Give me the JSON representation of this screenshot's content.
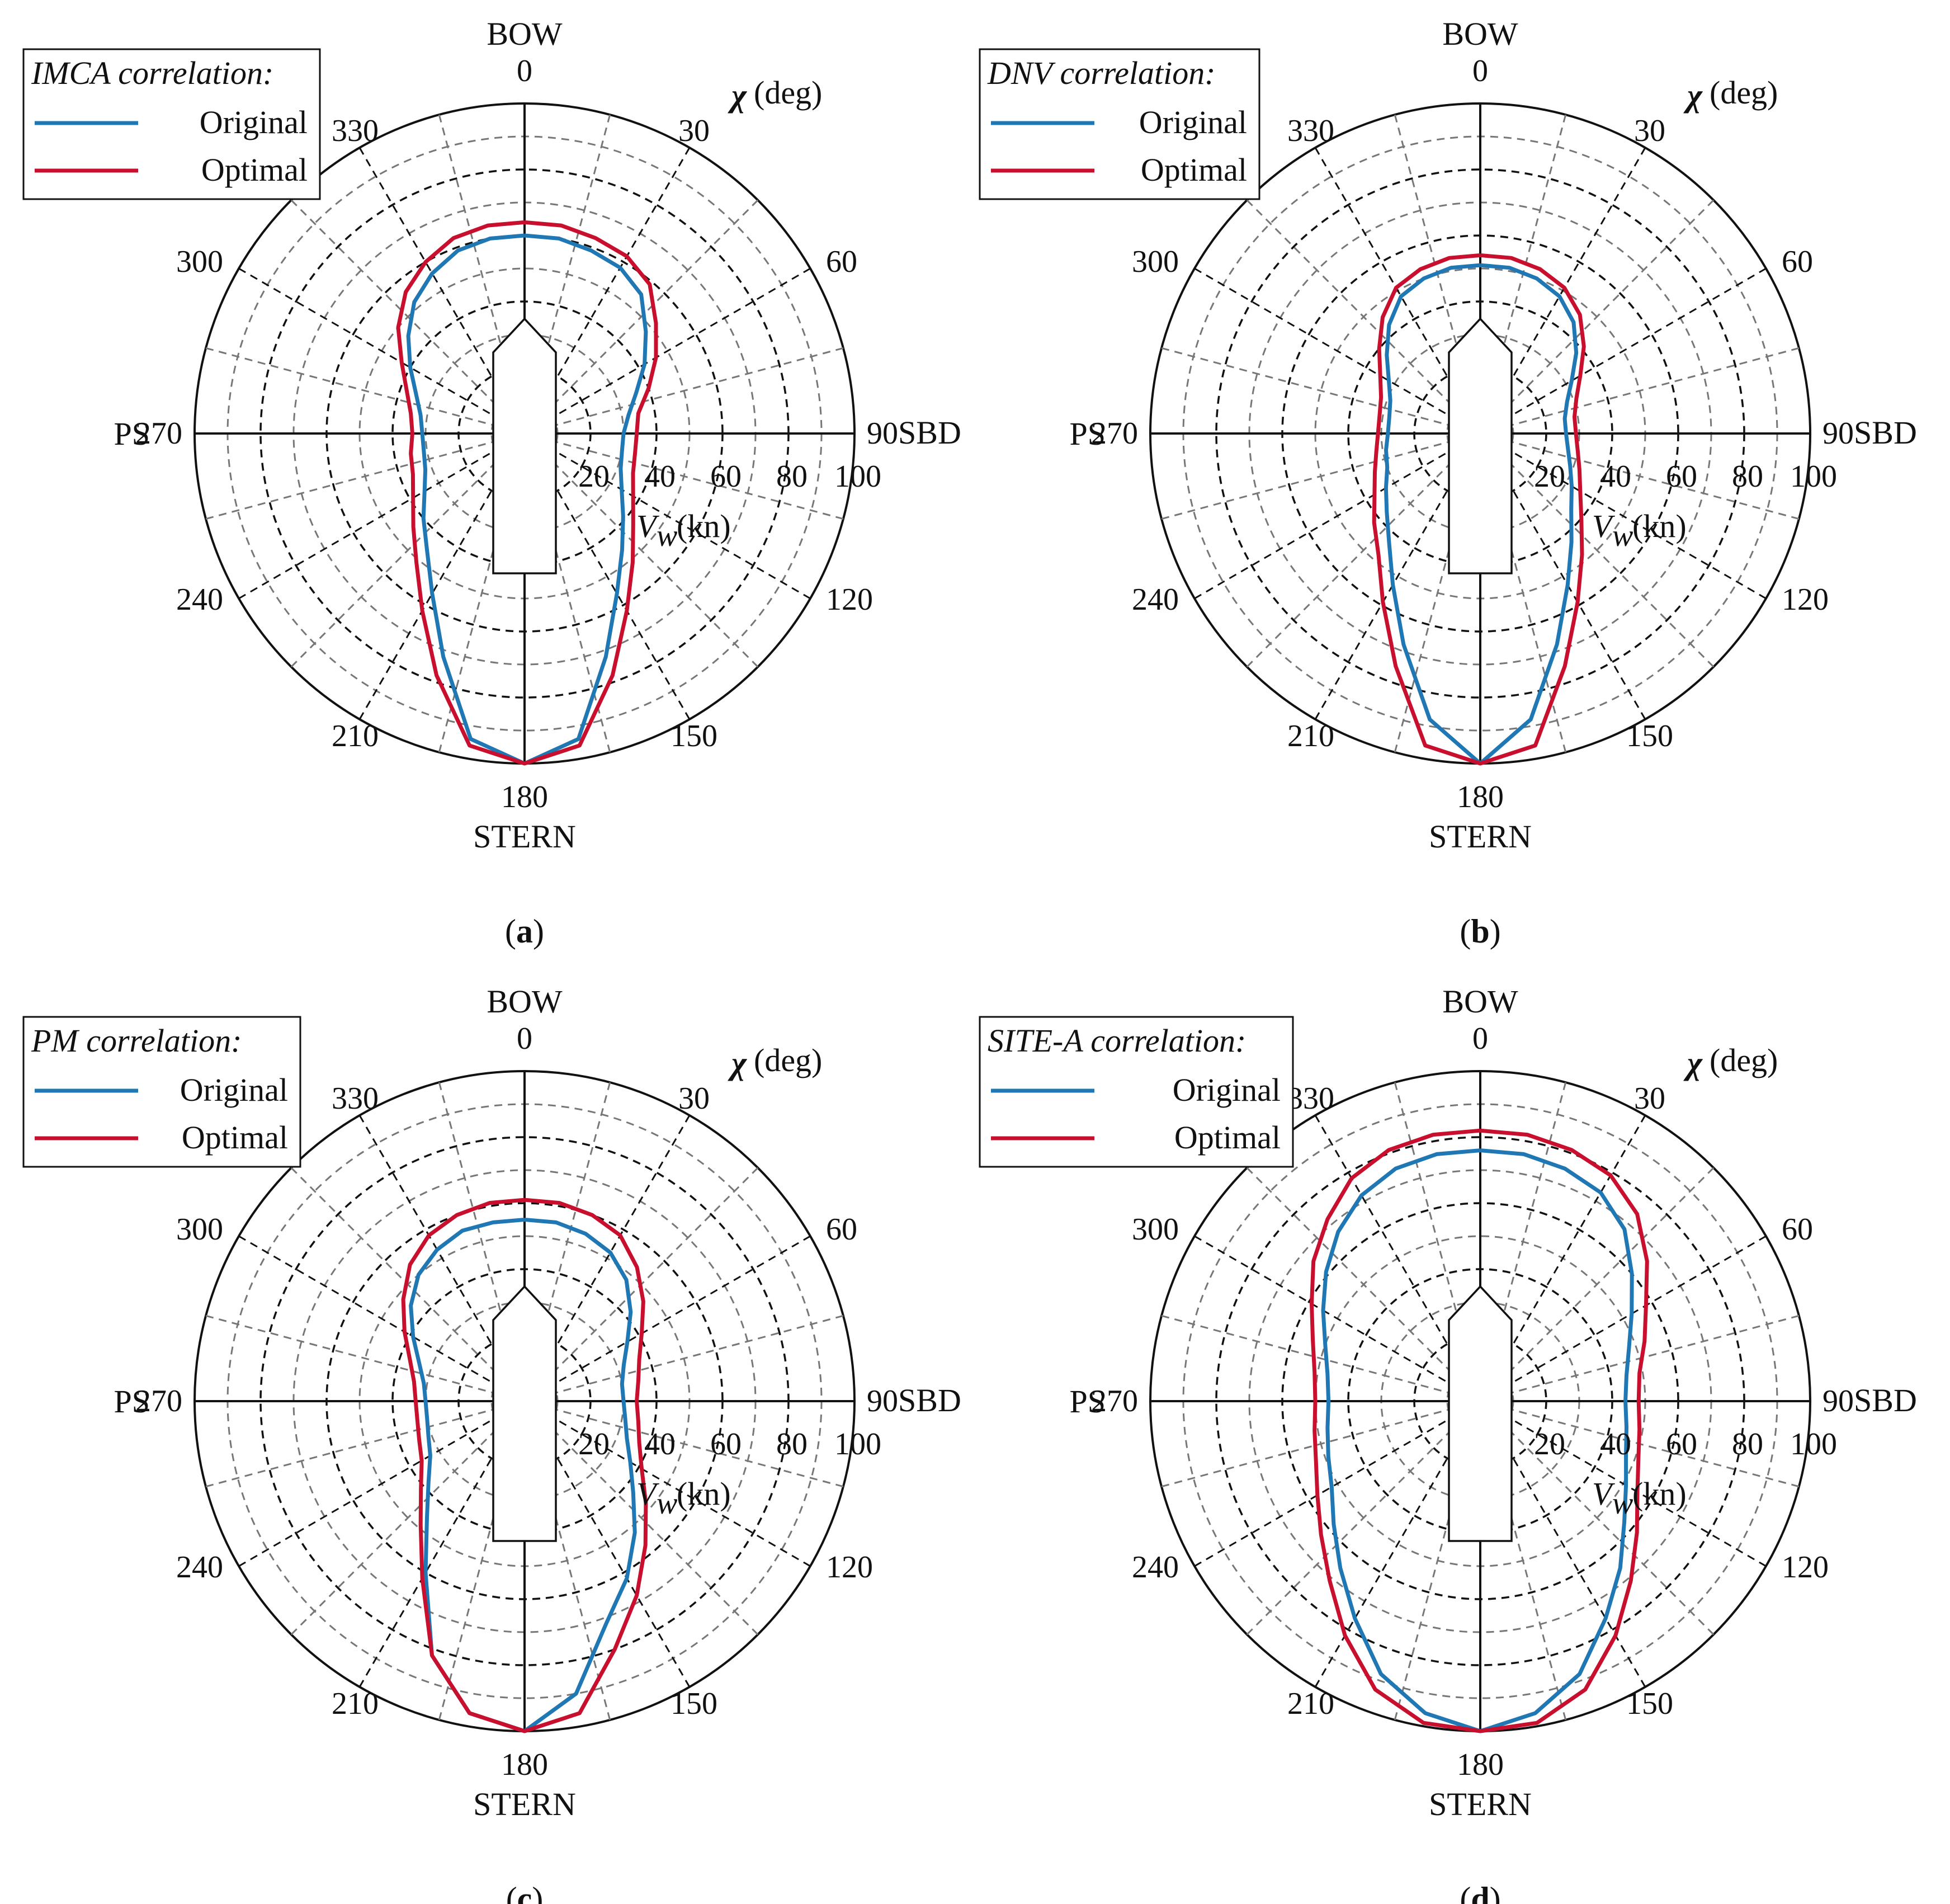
{
  "common": {
    "bow": "BOW",
    "stern": "STERN",
    "sbd": "SBD",
    "ps": "PS",
    "chi_symbol": "χ",
    "chi_unit": "(deg)",
    "vw_symbol": "V",
    "vw_subscript": "w",
    "vw_unit": "(kn)",
    "angle_labels": [
      "0",
      "30",
      "60",
      "90",
      "120",
      "150",
      "180",
      "210",
      "240",
      "270",
      "300",
      "330"
    ],
    "radial_ticks": [
      "20",
      "40",
      "60",
      "80",
      "100"
    ],
    "colors": {
      "original": "#1f77b4",
      "optimal": "#c8102e"
    }
  },
  "chart_data": [
    {
      "type": "line",
      "coordinate_system": "polar",
      "subtitle": "a",
      "legend_title": "IMCA correlation:",
      "legend_placement": "top-left",
      "theta_unit": "deg",
      "theta_direction": "clockwise",
      "theta_zero": "BOW",
      "r_unit": "kn",
      "rlim": [
        0,
        100
      ],
      "grid": true,
      "theta": [
        0,
        10,
        20,
        30,
        40,
        50,
        60,
        70,
        80,
        90,
        100,
        110,
        120,
        130,
        140,
        150,
        160,
        170,
        180,
        190,
        200,
        210,
        220,
        230,
        240,
        250,
        260,
        270,
        280,
        290,
        300,
        310,
        320,
        330,
        340,
        350
      ],
      "series": [
        {
          "name": "Original",
          "values": [
            60,
            60,
            59,
            58,
            55,
            48,
            42,
            36,
            32,
            30,
            30,
            31,
            34,
            39,
            46,
            56,
            72,
            94,
            100,
            94,
            72,
            56,
            46,
            40,
            35,
            32,
            31,
            31,
            32,
            35,
            40,
            46,
            52,
            56,
            59,
            60
          ]
        },
        {
          "name": "Optimal",
          "values": [
            64,
            64,
            63,
            62,
            59,
            52,
            46,
            40,
            35,
            34,
            34,
            35,
            38,
            43,
            51,
            62,
            78,
            96,
            100,
            96,
            78,
            62,
            51,
            44,
            39,
            36,
            35,
            34,
            35,
            38,
            43,
            50,
            56,
            60,
            63,
            64
          ]
        }
      ]
    },
    {
      "type": "line",
      "coordinate_system": "polar",
      "subtitle": "b",
      "legend_title": "DNV correlation:",
      "legend_placement": "top-left",
      "theta_unit": "deg",
      "theta_direction": "clockwise",
      "theta_zero": "BOW",
      "r_unit": "kn",
      "rlim": [
        0,
        100
      ],
      "grid": true,
      "theta": [
        0,
        10,
        20,
        30,
        40,
        50,
        60,
        70,
        80,
        90,
        100,
        110,
        120,
        130,
        140,
        150,
        160,
        170,
        180,
        190,
        200,
        210,
        220,
        230,
        240,
        250,
        260,
        270,
        280,
        290,
        300,
        310,
        320,
        330,
        340,
        350
      ],
      "series": [
        {
          "name": "Original",
          "values": [
            51,
            51,
            50,
            48,
            44,
            38,
            32,
            28,
            26,
            26,
            27,
            29,
            32,
            36,
            43,
            53,
            68,
            88,
            100,
            88,
            68,
            53,
            43,
            37,
            33,
            30,
            29,
            28,
            28,
            29,
            32,
            37,
            43,
            48,
            50,
            51
          ]
        },
        {
          "name": "Optimal",
          "values": [
            54,
            54,
            53,
            51,
            47,
            41,
            35,
            31,
            29,
            29,
            30,
            32,
            35,
            40,
            48,
            59,
            75,
            96,
            100,
            96,
            75,
            59,
            48,
            42,
            37,
            34,
            32,
            31,
            31,
            32,
            35,
            40,
            46,
            51,
            53,
            54
          ]
        }
      ]
    },
    {
      "type": "line",
      "coordinate_system": "polar",
      "subtitle": "c",
      "legend_title": "PM correlation:",
      "legend_placement": "top-left",
      "theta_unit": "deg",
      "theta_direction": "clockwise",
      "theta_zero": "BOW",
      "r_unit": "kn",
      "rlim": [
        0,
        100
      ],
      "grid": true,
      "theta": [
        0,
        10,
        20,
        30,
        40,
        50,
        60,
        70,
        80,
        90,
        100,
        110,
        120,
        130,
        140,
        150,
        160,
        170,
        180,
        190,
        200,
        210,
        220,
        230,
        240,
        250,
        260,
        270,
        280,
        290,
        300,
        310,
        320,
        330,
        340,
        350
      ],
      "series": [
        {
          "name": "Original",
          "values": [
            55,
            55,
            54,
            52,
            48,
            42,
            36,
            32,
            30,
            30,
            31,
            33,
            37,
            43,
            52,
            62,
            72,
            90,
            100,
            96,
            82,
            60,
            46,
            38,
            33,
            31,
            30,
            30,
            31,
            34,
            39,
            45,
            50,
            53,
            55,
            55
          ]
        },
        {
          "name": "Optimal",
          "values": [
            61,
            61,
            60,
            58,
            53,
            47,
            41,
            37,
            35,
            34,
            35,
            37,
            41,
            48,
            57,
            68,
            80,
            96,
            100,
            96,
            82,
            62,
            49,
            41,
            36,
            34,
            33,
            33,
            34,
            37,
            42,
            48,
            54,
            58,
            60,
            61
          ]
        }
      ]
    },
    {
      "type": "line",
      "coordinate_system": "polar",
      "subtitle": "d",
      "legend_title": "SITE-A correlation:",
      "legend_placement": "top-left",
      "theta_unit": "deg",
      "theta_direction": "clockwise",
      "theta_zero": "BOW",
      "r_unit": "kn",
      "rlim": [
        0,
        100
      ],
      "grid": true,
      "theta": [
        0,
        10,
        20,
        30,
        40,
        50,
        60,
        70,
        80,
        90,
        100,
        110,
        120,
        130,
        140,
        150,
        160,
        170,
        180,
        190,
        200,
        210,
        220,
        230,
        240,
        250,
        260,
        270,
        280,
        290,
        300,
        310,
        320,
        330,
        340,
        350
      ],
      "series": [
        {
          "name": "Original",
          "values": [
            76,
            76,
            75,
            73,
            68,
            60,
            53,
            48,
            45,
            44,
            45,
            47,
            51,
            57,
            66,
            76,
            88,
            96,
            100,
            96,
            88,
            76,
            66,
            58,
            52,
            49,
            47,
            46,
            47,
            50,
            55,
            61,
            67,
            72,
            75,
            76
          ]
        },
        {
          "name": "Optimal",
          "values": [
            82,
            82,
            81,
            79,
            74,
            66,
            58,
            53,
            49,
            48,
            49,
            51,
            55,
            62,
            71,
            82,
            93,
            99,
            100,
            99,
            93,
            82,
            71,
            63,
            57,
            53,
            51,
            50,
            51,
            54,
            59,
            66,
            72,
            78,
            81,
            82
          ]
        }
      ]
    }
  ]
}
